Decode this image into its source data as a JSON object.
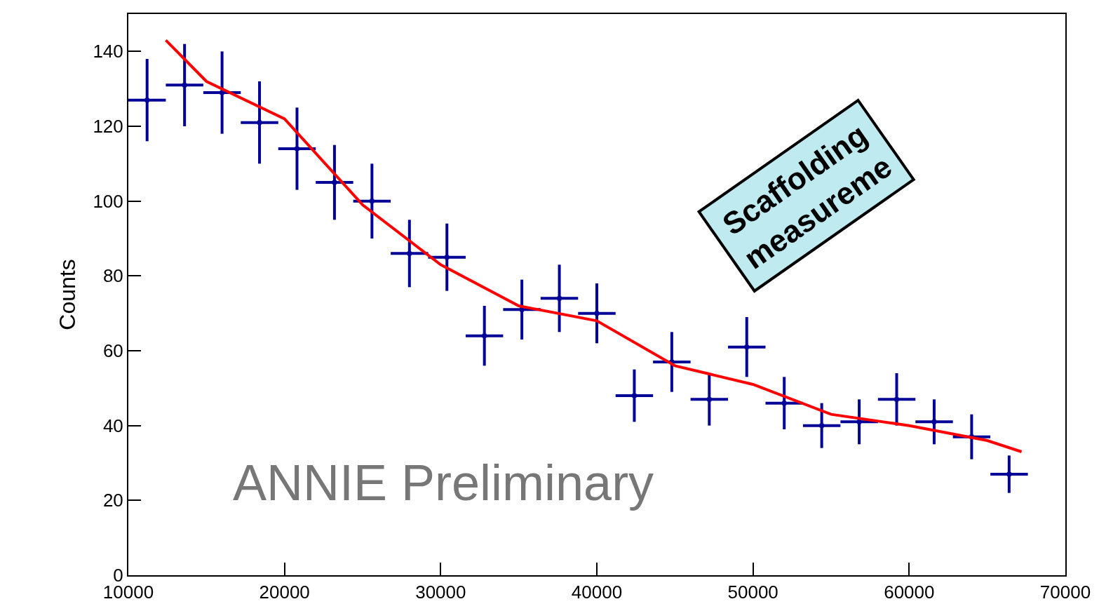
{
  "chart_data": {
    "type": "scatter",
    "ylabel": "Counts",
    "annotations": [
      "ANNIE Preliminary",
      "Scaffolding\nmeasureme"
    ],
    "x": [
      11200,
      13600,
      16000,
      18400,
      20800,
      23200,
      25600,
      28000,
      30400,
      32800,
      35200,
      37600,
      40000,
      42400,
      44800,
      47200,
      49600,
      52000,
      54400,
      56800,
      59200,
      61600,
      64000,
      66400
    ],
    "series": [
      {
        "color": "#000099",
        "marker": "square",
        "values": [
          127,
          131,
          129,
          121,
          114,
          105,
          100,
          86,
          85,
          64,
          71,
          74,
          70,
          48,
          57,
          47,
          61,
          46,
          40,
          41,
          47,
          41,
          37,
          27
        ],
        "errors": [
          11,
          11,
          11,
          11,
          11,
          10,
          10,
          9,
          9,
          8,
          8,
          9,
          8,
          7,
          8,
          7,
          8,
          7,
          6,
          6,
          7,
          6,
          6,
          5
        ],
        "xerrors": [
          1200,
          1200,
          1200,
          1200,
          1200,
          1200,
          1200,
          1200,
          1200,
          1200,
          1200,
          1200,
          1200,
          1200,
          1200,
          1200,
          1200,
          1200,
          1200,
          1200,
          1200,
          1200,
          1200,
          1200
        ]
      },
      {
        "type": "line",
        "color": "#ff0000",
        "line_style": "solid",
        "x": [
          12400,
          15000,
          20000,
          25000,
          30000,
          35000,
          40000,
          45000,
          50000,
          55000,
          60000,
          65000,
          67200
        ],
        "values": [
          143,
          132,
          122,
          99,
          83,
          72,
          68,
          56,
          51,
          43,
          40,
          36,
          33
        ]
      }
    ],
    "xlim": [
      10000,
      70000
    ],
    "xticks": [
      10000,
      20000,
      30000,
      40000,
      50000,
      60000,
      70000
    ],
    "ylim": [
      0,
      150
    ],
    "yticks": [
      0,
      20,
      40,
      60,
      80,
      100,
      120,
      140
    ]
  }
}
